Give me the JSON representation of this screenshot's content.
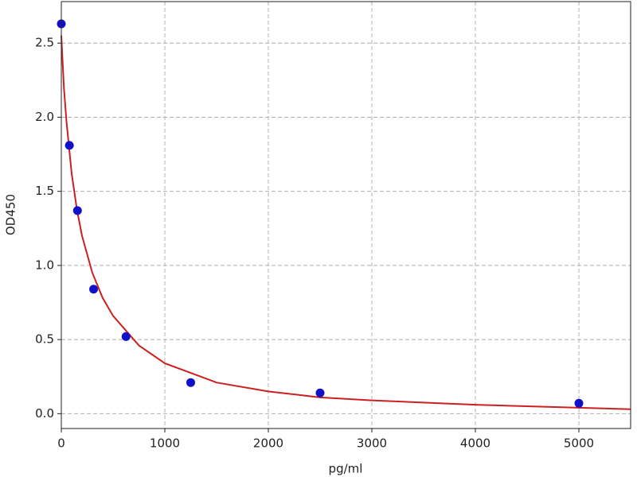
{
  "chart_data": {
    "type": "scatter",
    "x_label": "pg/ml",
    "y_label": "OD450",
    "xlim": [
      0,
      5500
    ],
    "ylim": [
      -0.1,
      2.78
    ],
    "xticks": [
      0,
      1000,
      2000,
      3000,
      4000,
      5000
    ],
    "yticks": [
      {
        "value": 0,
        "label": "0.0"
      },
      0.5,
      {
        "value": 1,
        "label": "1.0"
      },
      1.5,
      {
        "value": 2,
        "label": "2.0"
      },
      2.5
    ],
    "grid": true,
    "series": [
      {
        "kind": "points",
        "color": "#1010c8",
        "x": [
          0,
          78,
          156,
          312,
          625,
          1250,
          2500,
          5000
        ],
        "y": [
          2.63,
          1.81,
          1.37,
          0.84,
          0.52,
          0.21,
          0.14,
          0.07
        ]
      },
      {
        "kind": "line",
        "color": "#cc2020",
        "x": [
          0,
          25,
          50,
          100,
          150,
          200,
          300,
          400,
          500,
          750,
          1000,
          1500,
          2000,
          2500,
          3000,
          4000,
          5000,
          5500
        ],
        "y": [
          2.55,
          2.2,
          1.97,
          1.62,
          1.38,
          1.2,
          0.95,
          0.78,
          0.66,
          0.46,
          0.34,
          0.21,
          0.15,
          0.11,
          0.09,
          0.06,
          0.04,
          0.03
        ]
      }
    ]
  }
}
